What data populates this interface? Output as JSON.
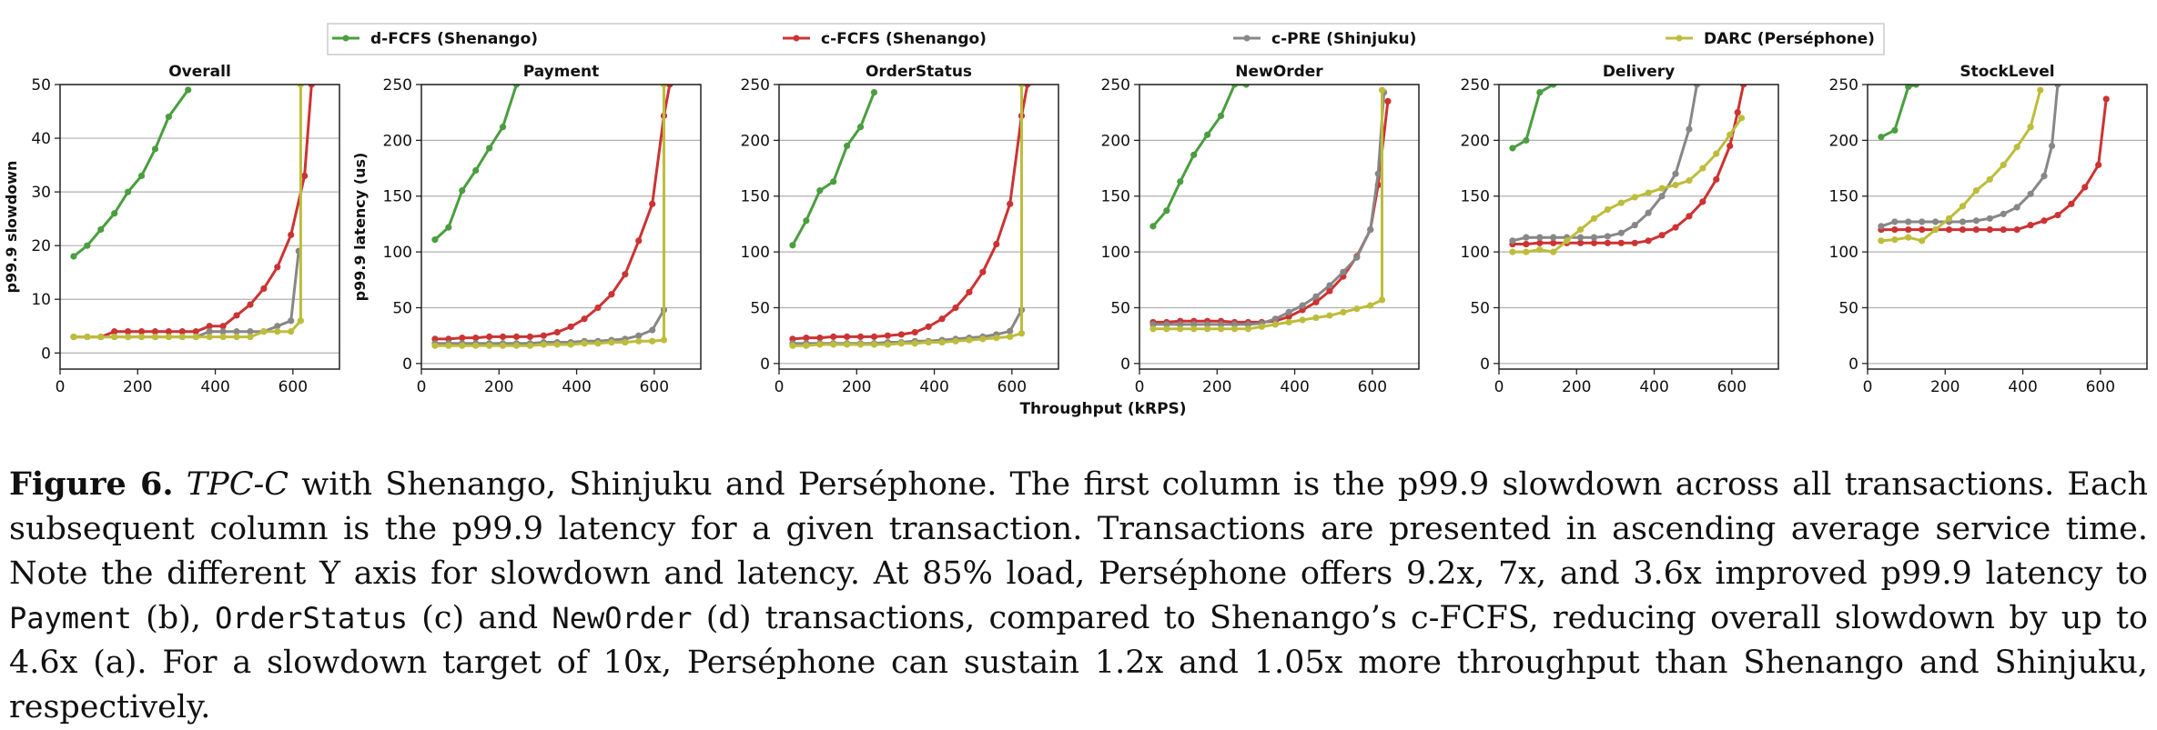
{
  "legend": [
    {
      "label": "d-FCFS (Shenango)",
      "color": "#4a9e3f"
    },
    {
      "label": "c-FCFS (Shenango)",
      "color": "#cc3333"
    },
    {
      "label": "c-PRE (Shinjuku)",
      "color": "#878787"
    },
    {
      "label": "DARC (Perséphone)",
      "color": "#bdbd3c"
    }
  ],
  "shared_xlabel": "Throughput (kRPS)",
  "chart_data": [
    {
      "type": "line",
      "title": "Overall",
      "ylabel": "p99.9 slowdown",
      "xlim": [
        0,
        720
      ],
      "ylim": [
        -3,
        50
      ],
      "xticks": [
        0,
        200,
        400,
        600
      ],
      "yticks": [
        0,
        10,
        20,
        30,
        40,
        50
      ],
      "series": [
        {
          "name": "d-FCFS (Shenango)",
          "x": [
            35,
            70,
            105,
            140,
            175,
            210,
            245,
            280,
            330
          ],
          "y": [
            18,
            20,
            23,
            26,
            30,
            33,
            38,
            44,
            49
          ]
        },
        {
          "name": "c-FCFS (Shenango)",
          "x": [
            35,
            70,
            105,
            140,
            175,
            210,
            245,
            280,
            315,
            350,
            385,
            420,
            455,
            490,
            525,
            560,
            595,
            630,
            648
          ],
          "y": [
            3,
            3,
            3,
            4,
            4,
            4,
            4,
            4,
            4,
            4,
            5,
            5,
            7,
            9,
            12,
            16,
            22,
            33,
            50
          ]
        },
        {
          "name": "c-PRE (Shinjuku)",
          "x": [
            35,
            70,
            105,
            140,
            175,
            210,
            245,
            280,
            315,
            350,
            385,
            420,
            455,
            490,
            525,
            560,
            595,
            615
          ],
          "y": [
            3,
            3,
            3,
            3,
            3,
            3,
            3,
            3,
            3,
            3,
            4,
            4,
            4,
            4,
            4,
            5,
            6,
            19
          ]
        },
        {
          "name": "DARC (Perséphone)",
          "x": [
            35,
            70,
            105,
            140,
            175,
            210,
            245,
            280,
            315,
            350,
            385,
            420,
            455,
            490,
            525,
            560,
            595,
            620,
            620
          ],
          "y": [
            3,
            3,
            3,
            3,
            3,
            3,
            3,
            3,
            3,
            3,
            3,
            3,
            3,
            3,
            4,
            4,
            4,
            6,
            50
          ]
        }
      ]
    },
    {
      "type": "line",
      "title": "Payment",
      "ylabel": "p99.9 latency (us)",
      "xlim": [
        0,
        720
      ],
      "ylim": [
        -5,
        250
      ],
      "xticks": [
        0,
        200,
        400,
        600
      ],
      "yticks": [
        0,
        50,
        100,
        150,
        200,
        250
      ],
      "series": [
        {
          "name": "d-FCFS (Shenango)",
          "x": [
            35,
            70,
            105,
            140,
            175,
            210,
            245
          ],
          "y": [
            111,
            122,
            155,
            173,
            193,
            212,
            250
          ]
        },
        {
          "name": "c-FCFS (Shenango)",
          "x": [
            35,
            70,
            105,
            140,
            175,
            210,
            245,
            280,
            315,
            350,
            385,
            420,
            455,
            490,
            525,
            560,
            595,
            625,
            640
          ],
          "y": [
            22,
            22,
            23,
            23,
            24,
            24,
            24,
            24,
            25,
            28,
            33,
            40,
            50,
            62,
            80,
            110,
            143,
            222,
            250
          ]
        },
        {
          "name": "c-PRE (Shinjuku)",
          "x": [
            35,
            70,
            105,
            140,
            175,
            210,
            245,
            280,
            315,
            350,
            385,
            420,
            455,
            490,
            525,
            560,
            595,
            625
          ],
          "y": [
            18,
            18,
            18,
            18,
            18,
            18,
            18,
            18,
            19,
            19,
            19,
            20,
            20,
            21,
            22,
            25,
            30,
            48
          ]
        },
        {
          "name": "DARC (Perséphone)",
          "x": [
            35,
            70,
            105,
            140,
            175,
            210,
            245,
            280,
            315,
            350,
            385,
            420,
            455,
            490,
            525,
            560,
            595,
            625,
            625
          ],
          "y": [
            16,
            16,
            16,
            16,
            16,
            16,
            16,
            16,
            17,
            17,
            17,
            18,
            18,
            19,
            19,
            20,
            20,
            21,
            250
          ]
        }
      ]
    },
    {
      "type": "line",
      "title": "OrderStatus",
      "ylabel": "",
      "xlim": [
        0,
        720
      ],
      "ylim": [
        -5,
        250
      ],
      "xticks": [
        0,
        200,
        400,
        600
      ],
      "yticks": [
        0,
        50,
        100,
        150,
        200,
        250
      ],
      "series": [
        {
          "name": "d-FCFS (Shenango)",
          "x": [
            35,
            70,
            105,
            140,
            175,
            210,
            245
          ],
          "y": [
            106,
            128,
            155,
            163,
            195,
            212,
            243
          ]
        },
        {
          "name": "c-FCFS (Shenango)",
          "x": [
            35,
            70,
            105,
            140,
            175,
            210,
            245,
            280,
            315,
            350,
            385,
            420,
            455,
            490,
            525,
            560,
            595,
            625,
            640
          ],
          "y": [
            22,
            23,
            23,
            24,
            24,
            24,
            24,
            25,
            26,
            28,
            33,
            40,
            50,
            64,
            82,
            107,
            143,
            222,
            250
          ]
        },
        {
          "name": "c-PRE (Shinjuku)",
          "x": [
            35,
            70,
            105,
            140,
            175,
            210,
            245,
            280,
            315,
            350,
            385,
            420,
            455,
            490,
            525,
            560,
            595,
            625
          ],
          "y": [
            18,
            18,
            18,
            18,
            18,
            18,
            18,
            19,
            19,
            20,
            20,
            21,
            22,
            23,
            24,
            26,
            29,
            48
          ]
        },
        {
          "name": "DARC (Perséphone)",
          "x": [
            35,
            70,
            105,
            140,
            175,
            210,
            245,
            280,
            315,
            350,
            385,
            420,
            455,
            490,
            525,
            560,
            595,
            625,
            625
          ],
          "y": [
            16,
            16,
            17,
            17,
            17,
            17,
            17,
            17,
            18,
            18,
            19,
            19,
            20,
            21,
            22,
            23,
            24,
            27,
            250
          ]
        }
      ]
    },
    {
      "type": "line",
      "title": "NewOrder",
      "ylabel": "",
      "xlim": [
        0,
        720
      ],
      "ylim": [
        -5,
        250
      ],
      "xticks": [
        0,
        200,
        400,
        600
      ],
      "yticks": [
        0,
        50,
        100,
        150,
        200,
        250
      ],
      "series": [
        {
          "name": "d-FCFS (Shenango)",
          "x": [
            35,
            70,
            105,
            140,
            175,
            210,
            245,
            275
          ],
          "y": [
            123,
            137,
            163,
            187,
            205,
            222,
            250,
            250
          ]
        },
        {
          "name": "c-FCFS (Shenango)",
          "x": [
            35,
            70,
            105,
            140,
            175,
            210,
            245,
            280,
            315,
            350,
            385,
            420,
            455,
            490,
            525,
            560,
            595,
            615,
            640
          ],
          "y": [
            37,
            37,
            38,
            38,
            38,
            38,
            37,
            37,
            37,
            38,
            42,
            48,
            55,
            65,
            78,
            96,
            120,
            160,
            235
          ]
        },
        {
          "name": "c-PRE (Shinjuku)",
          "x": [
            35,
            70,
            105,
            140,
            175,
            210,
            245,
            280,
            315,
            350,
            385,
            420,
            455,
            490,
            525,
            560,
            595,
            615,
            630
          ],
          "y": [
            35,
            35,
            35,
            35,
            35,
            35,
            35,
            35,
            36,
            40,
            46,
            52,
            60,
            70,
            82,
            95,
            120,
            170,
            243
          ]
        },
        {
          "name": "DARC (Perséphone)",
          "x": [
            35,
            70,
            105,
            140,
            175,
            210,
            245,
            280,
            315,
            350,
            385,
            420,
            455,
            490,
            525,
            560,
            595,
            625,
            625
          ],
          "y": [
            31,
            31,
            31,
            31,
            31,
            31,
            31,
            31,
            33,
            35,
            37,
            39,
            41,
            43,
            46,
            49,
            52,
            57,
            245
          ]
        }
      ]
    },
    {
      "type": "line",
      "title": "Delivery",
      "ylabel": "",
      "xlim": [
        0,
        720
      ],
      "ylim": [
        -5,
        250
      ],
      "xticks": [
        0,
        200,
        400,
        600
      ],
      "yticks": [
        0,
        50,
        100,
        150,
        200,
        250
      ],
      "series": [
        {
          "name": "d-FCFS (Shenango)",
          "x": [
            35,
            70,
            105,
            140
          ],
          "y": [
            193,
            200,
            243,
            250
          ]
        },
        {
          "name": "c-FCFS (Shenango)",
          "x": [
            35,
            70,
            105,
            140,
            175,
            210,
            245,
            280,
            315,
            350,
            385,
            420,
            455,
            490,
            525,
            560,
            595,
            615,
            630
          ],
          "y": [
            107,
            107,
            108,
            108,
            108,
            108,
            108,
            108,
            108,
            108,
            110,
            115,
            122,
            132,
            145,
            165,
            195,
            225,
            250
          ]
        },
        {
          "name": "c-PRE (Shinjuku)",
          "x": [
            35,
            70,
            105,
            140,
            175,
            210,
            245,
            280,
            315,
            350,
            385,
            420,
            455,
            490,
            510
          ],
          "y": [
            110,
            113,
            113,
            113,
            113,
            113,
            113,
            114,
            117,
            124,
            135,
            150,
            170,
            210,
            250
          ]
        },
        {
          "name": "DARC (Perséphone)",
          "x": [
            35,
            70,
            105,
            140,
            175,
            210,
            245,
            280,
            315,
            350,
            385,
            420,
            455,
            490,
            525,
            560,
            595,
            625
          ],
          "y": [
            100,
            100,
            102,
            100,
            110,
            120,
            130,
            138,
            144,
            149,
            153,
            157,
            160,
            164,
            175,
            188,
            205,
            220
          ]
        }
      ]
    },
    {
      "type": "line",
      "title": "StockLevel",
      "ylabel": "",
      "xlim": [
        0,
        720
      ],
      "ylim": [
        -5,
        250
      ],
      "xticks": [
        0,
        200,
        400,
        600
      ],
      "yticks": [
        0,
        50,
        100,
        150,
        200,
        250
      ],
      "series": [
        {
          "name": "d-FCFS (Shenango)",
          "x": [
            35,
            70,
            105,
            125
          ],
          "y": [
            203,
            209,
            248,
            250
          ]
        },
        {
          "name": "c-FCFS (Shenango)",
          "x": [
            35,
            70,
            105,
            140,
            175,
            210,
            245,
            280,
            315,
            350,
            385,
            420,
            455,
            490,
            525,
            560,
            595,
            615
          ],
          "y": [
            120,
            120,
            120,
            120,
            120,
            120,
            120,
            120,
            120,
            120,
            120,
            124,
            128,
            133,
            143,
            158,
            178,
            237
          ]
        },
        {
          "name": "c-PRE (Shinjuku)",
          "x": [
            35,
            70,
            105,
            140,
            175,
            210,
            245,
            280,
            315,
            350,
            385,
            420,
            455,
            475,
            490
          ],
          "y": [
            123,
            127,
            127,
            127,
            127,
            127,
            127,
            128,
            130,
            134,
            140,
            152,
            168,
            195,
            250
          ]
        },
        {
          "name": "DARC (Perséphone)",
          "x": [
            35,
            70,
            105,
            140,
            175,
            210,
            245,
            280,
            315,
            350,
            385,
            420,
            445
          ],
          "y": [
            110,
            111,
            113,
            110,
            120,
            130,
            141,
            155,
            165,
            178,
            194,
            212,
            245
          ]
        }
      ]
    }
  ],
  "caption": {
    "label": "Figure 6.",
    "parts": [
      {
        "text": "TPC-C",
        "style": "italic"
      },
      {
        "text": " with Shenango, Shinjuku and Perséphone. The first column is the p99.9 slowdown across all transactions. Each subsequent column is the p99.9 latency for a given transaction. Transactions are presented in ascending average service time. Note the different Y axis for slowdown and latency. At 85% load, Perséphone offers 9.2x, 7x, and 3.6x improved p99.9 latency to ",
        "style": "normal"
      },
      {
        "text": "Payment",
        "style": "code"
      },
      {
        "text": " (b), ",
        "style": "normal"
      },
      {
        "text": "OrderStatus",
        "style": "code"
      },
      {
        "text": " (c) and ",
        "style": "normal"
      },
      {
        "text": "NewOrder",
        "style": "code"
      },
      {
        "text": " (d) transactions, compared to Shenango’s c-FCFS, reducing overall slowdown by up to 4.6x (a). For a slowdown target of 10x, Perséphone can sustain 1.2x and 1.05x more throughput than Shenango and Shinjuku, respectively.",
        "style": "normal"
      }
    ]
  }
}
